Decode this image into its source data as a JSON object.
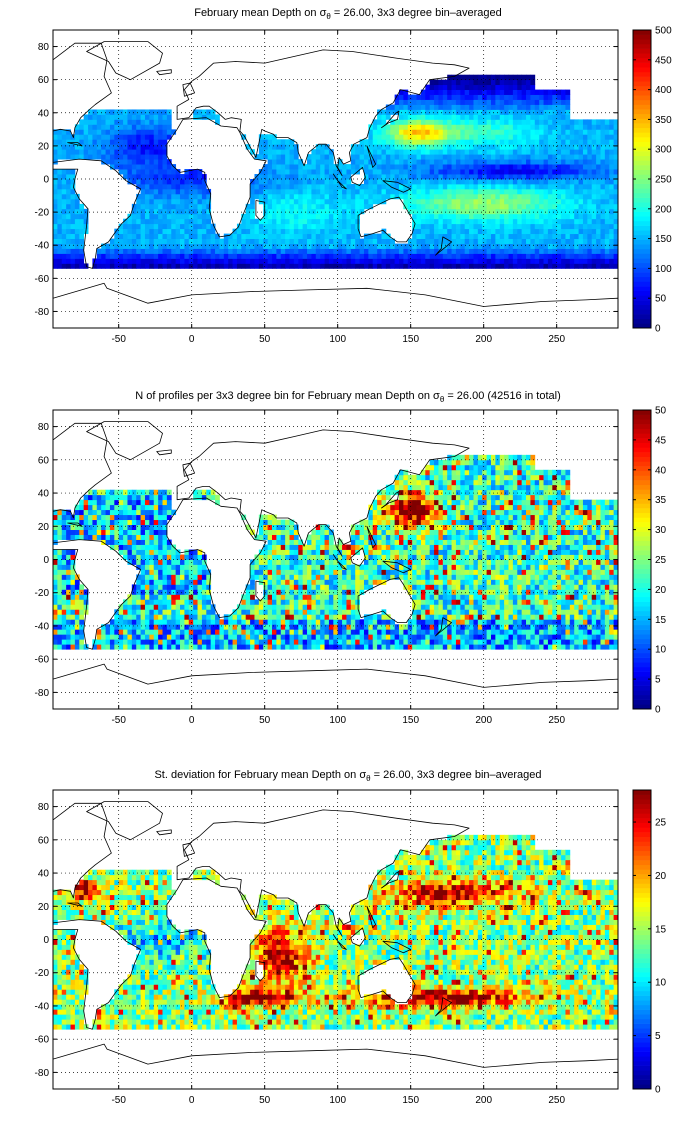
{
  "chart_data": [
    {
      "type": "heatmap",
      "title_parts": [
        "February mean Depth on ",
        "σ",
        "θ",
        " = 26.00, 3x3 degree bin–averaged"
      ],
      "xlim": [
        -95,
        292
      ],
      "ylim": [
        -90,
        90
      ],
      "x_ticks": [
        -50,
        0,
        50,
        100,
        150,
        200,
        250
      ],
      "y_ticks": [
        -80,
        -60,
        -40,
        -20,
        0,
        20,
        40,
        60,
        80
      ],
      "grid": true,
      "colorbar": {
        "min": 0,
        "max": 500,
        "ticks": [
          0,
          50,
          100,
          150,
          200,
          250,
          300,
          350,
          400,
          450,
          500
        ]
      },
      "colormap": "jet",
      "field": "depth"
    },
    {
      "type": "heatmap",
      "title_parts": [
        "N of profiles per 3x3 degree bin for February mean Depth on ",
        "σ",
        "θ",
        " = 26.00 (42516 in total)"
      ],
      "xlim": [
        -95,
        292
      ],
      "ylim": [
        -90,
        90
      ],
      "x_ticks": [
        -50,
        0,
        50,
        100,
        150,
        200,
        250
      ],
      "y_ticks": [
        -80,
        -60,
        -40,
        -20,
        0,
        20,
        40,
        60,
        80
      ],
      "grid": true,
      "colorbar": {
        "min": 0,
        "max": 50,
        "ticks": [
          0,
          5,
          10,
          15,
          20,
          25,
          30,
          35,
          40,
          45,
          50
        ]
      },
      "colormap": "jet",
      "field": "count"
    },
    {
      "type": "heatmap",
      "title_parts": [
        "St. deviation for February mean Depth on ",
        "σ",
        "θ",
        " = 26.00, 3x3 degree bin–averaged"
      ],
      "xlim": [
        -95,
        292
      ],
      "ylim": [
        -90,
        90
      ],
      "x_ticks": [
        -50,
        0,
        50,
        100,
        150,
        200,
        250
      ],
      "y_ticks": [
        -80,
        -60,
        -40,
        -20,
        0,
        20,
        40,
        60,
        80
      ],
      "grid": true,
      "colorbar": {
        "min": 0,
        "max": 28,
        "ticks": [
          0,
          5,
          10,
          15,
          20,
          25
        ]
      },
      "colormap": "jet",
      "field": "std"
    }
  ]
}
